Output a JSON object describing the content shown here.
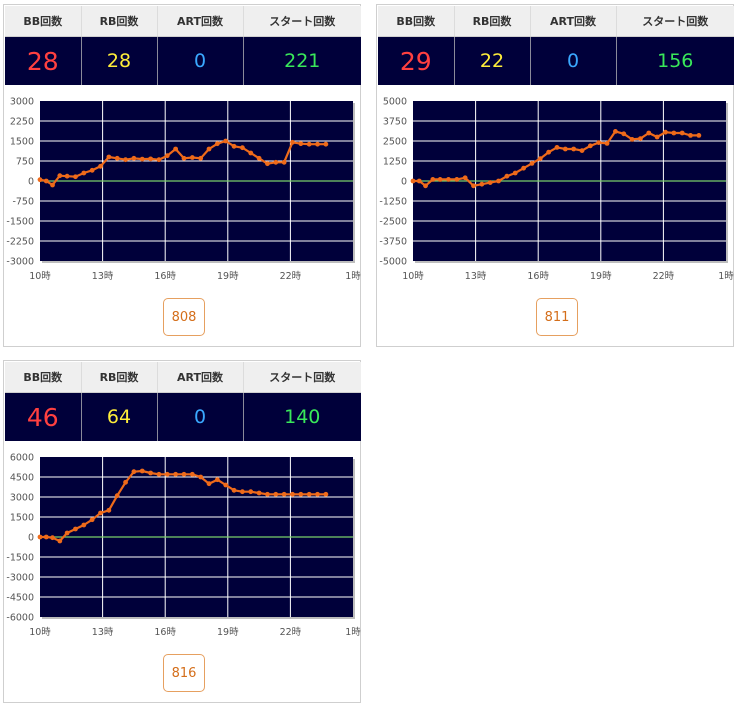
{
  "headers": {
    "bb": "BB回数",
    "rb": "RB回数",
    "art": "ART回数",
    "start": "スタート回数"
  },
  "colors": {
    "bb": "#ff4040",
    "rb": "#ffee3a",
    "art": "#3aa8ff",
    "start": "#39e85a",
    "line": "#ee6a1a",
    "zero_line": "#7ad06a",
    "plot_bg": "#00003a"
  },
  "machines": [
    {
      "bb": "28",
      "rb": "28",
      "art": "0",
      "start": "221",
      "button_label": "808"
    },
    {
      "bb": "29",
      "rb": "22",
      "art": "0",
      "start": "156",
      "button_label": "811"
    },
    {
      "bb": "46",
      "rb": "64",
      "art": "0",
      "start": "140",
      "button_label": "816"
    }
  ],
  "chart_data": [
    {
      "type": "line",
      "x_ticks": [
        "10時",
        "13時",
        "16時",
        "19時",
        "22時",
        "1時"
      ],
      "xlim": [
        10,
        25
      ],
      "y_ticks": [
        "3000",
        "2250",
        "1500",
        "750",
        "0",
        "-750",
        "-1500",
        "-2250",
        "-3000"
      ],
      "ylim": [
        -3000,
        3000
      ],
      "grid": true,
      "series": [
        {
          "x": [
            10,
            10.3,
            10.6,
            10.95,
            11.3,
            11.7,
            12.1,
            12.5,
            12.9,
            13.3,
            13.7,
            14.1,
            14.5,
            14.9,
            15.3,
            15.7,
            16.1,
            16.5,
            16.9,
            17.3,
            17.7,
            18.1,
            18.5,
            18.9,
            19.3,
            19.7,
            20.1,
            20.5,
            20.9,
            21.3,
            21.7,
            22.1,
            22.5,
            22.9,
            23.3,
            23.7
          ],
          "values": [
            50,
            0,
            -150,
            200,
            180,
            160,
            300,
            400,
            550,
            900,
            850,
            800,
            850,
            820,
            830,
            800,
            950,
            1200,
            850,
            880,
            850,
            1200,
            1400,
            1500,
            1300,
            1250,
            1050,
            850,
            650,
            700,
            700,
            1450,
            1400,
            1380,
            1380,
            1380
          ]
        }
      ]
    },
    {
      "type": "line",
      "x_ticks": [
        "10時",
        "13時",
        "16時",
        "19時",
        "22時",
        "1時"
      ],
      "xlim": [
        10,
        25
      ],
      "y_ticks": [
        "5000",
        "3750",
        "2500",
        "1250",
        "0",
        "-1250",
        "-2500",
        "-3750",
        "-5000"
      ],
      "ylim": [
        -5000,
        5000
      ],
      "grid": true,
      "series": [
        {
          "x": [
            10,
            10.3,
            10.6,
            10.95,
            11.3,
            11.7,
            12.1,
            12.5,
            12.9,
            13.3,
            13.7,
            14.1,
            14.5,
            14.9,
            15.3,
            15.7,
            16.1,
            16.5,
            16.9,
            17.3,
            17.7,
            18.1,
            18.5,
            18.9,
            19.3,
            19.7,
            20.1,
            20.5,
            20.9,
            21.3,
            21.7,
            22.1,
            22.5,
            22.9,
            23.3,
            23.7
          ],
          "values": [
            0,
            0,
            -300,
            100,
            100,
            100,
            100,
            200,
            -300,
            -200,
            -100,
            0,
            300,
            500,
            800,
            1100,
            1400,
            1800,
            2100,
            2000,
            2000,
            1900,
            2200,
            2400,
            2350,
            3100,
            2950,
            2600,
            2650,
            3000,
            2750,
            3050,
            3000,
            3000,
            2850,
            2850
          ]
        }
      ]
    },
    {
      "type": "line",
      "x_ticks": [
        "10時",
        "13時",
        "16時",
        "19時",
        "22時",
        "1時"
      ],
      "xlim": [
        10,
        25
      ],
      "y_ticks": [
        "6000",
        "4500",
        "3000",
        "1500",
        "0",
        "-1500",
        "-3000",
        "-4500",
        "-6000"
      ],
      "ylim": [
        -6000,
        6000
      ],
      "grid": true,
      "series": [
        {
          "x": [
            10,
            10.3,
            10.6,
            10.95,
            11.3,
            11.7,
            12.1,
            12.5,
            12.9,
            13.3,
            13.7,
            14.1,
            14.5,
            14.9,
            15.3,
            15.7,
            16.1,
            16.5,
            16.9,
            17.3,
            17.7,
            18.1,
            18.5,
            18.9,
            19.3,
            19.7,
            20.1,
            20.5,
            20.9,
            21.3,
            21.7,
            22.1,
            22.5,
            22.9,
            23.3,
            23.7
          ],
          "values": [
            0,
            0,
            -50,
            -300,
            300,
            600,
            900,
            1300,
            1800,
            2000,
            3100,
            4100,
            4900,
            4950,
            4800,
            4700,
            4700,
            4700,
            4700,
            4700,
            4500,
            4000,
            4300,
            3900,
            3500,
            3400,
            3400,
            3300,
            3200,
            3200,
            3200,
            3200,
            3200,
            3200,
            3200,
            3200
          ]
        }
      ]
    }
  ]
}
